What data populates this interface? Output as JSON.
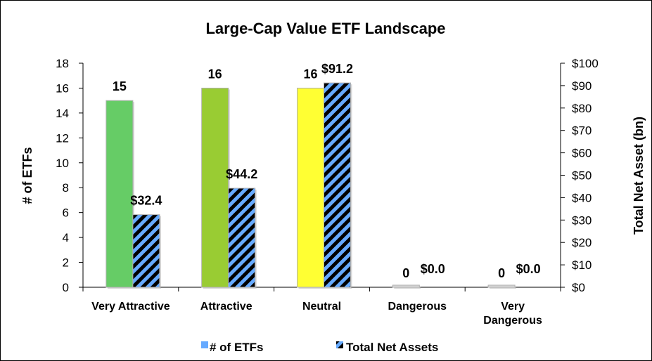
{
  "chart_data": {
    "type": "bar",
    "title": "Large-Cap Value ETF Landscape",
    "categories": [
      [
        "Very Attractive"
      ],
      [
        "Attractive"
      ],
      [
        "Neutral"
      ],
      [
        "Dangerous"
      ],
      [
        "Very",
        "Dangerous"
      ]
    ],
    "series": [
      {
        "name": "# of ETFs",
        "axis": "left",
        "values": [
          15,
          16,
          16,
          0,
          0
        ],
        "labels": [
          "15",
          "16",
          "16",
          "0",
          "0"
        ],
        "colors": [
          "#66cc66",
          "#99cc33",
          "#ffff33",
          "#d9d9d9",
          "#d9d9d9"
        ],
        "legend_color": "#66aaff"
      },
      {
        "name": "Total Net Assets",
        "axis": "right",
        "values": [
          32.4,
          44.2,
          91.2,
          0.0,
          0.0
        ],
        "labels": [
          "$32.4",
          "$44.2",
          "$91.2",
          "$0.0",
          "$0.0"
        ],
        "pattern_colors": [
          "#66aaff",
          "#000000"
        ]
      }
    ],
    "y_left": {
      "label": "# of ETFs",
      "ylim": [
        0,
        18
      ],
      "ticks": [
        "0",
        "2",
        "4",
        "6",
        "8",
        "10",
        "12",
        "14",
        "16",
        "18"
      ]
    },
    "y_right": {
      "label": "Total Net Asset (bn)",
      "ylim": [
        0,
        100
      ],
      "ticks": [
        "$0",
        "$10",
        "$20",
        "$30",
        "$40",
        "$50",
        "$60",
        "$70",
        "$80",
        "$90",
        "$100"
      ]
    },
    "grid": false,
    "legend": "bottom"
  }
}
